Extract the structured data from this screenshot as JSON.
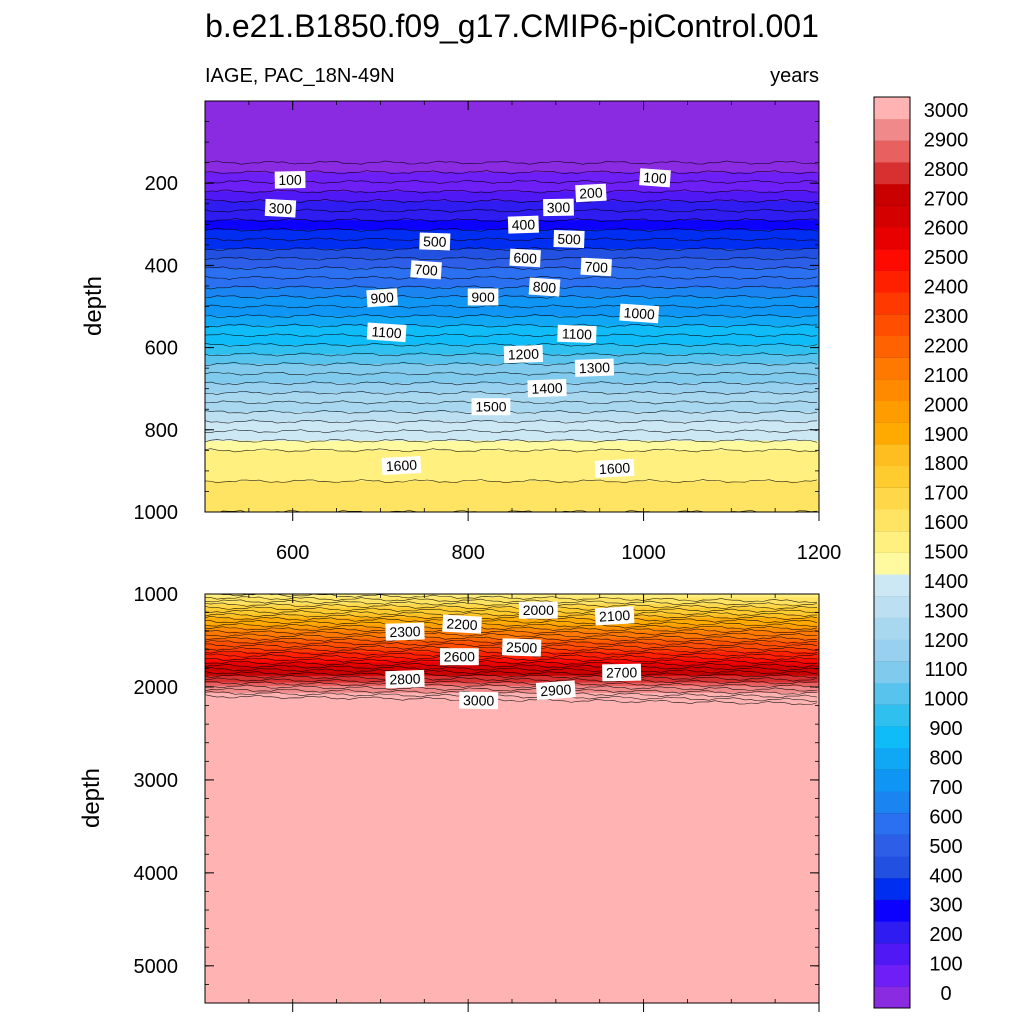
{
  "chart_data": {
    "type": "heatmap",
    "title": "b.e21.B1850.f09_g17.CMIP6-piControl.001",
    "left_string": "IAGE, PAC_18N-49N",
    "right_string": "years",
    "ylabel": "depth",
    "colorbar": {
      "levels": [
        0,
        100,
        200,
        300,
        400,
        500,
        600,
        700,
        800,
        900,
        1000,
        1100,
        1200,
        1300,
        1400,
        1500,
        1600,
        1700,
        1800,
        1900,
        2000,
        2100,
        2200,
        2300,
        2400,
        2500,
        2600,
        2700,
        2800,
        2900,
        3000
      ],
      "tick_labels": [
        "0",
        "100",
        "200",
        "300",
        "400",
        "500",
        "600",
        "700",
        "800",
        "900",
        "1000",
        "1100",
        "1200",
        "1300",
        "1400",
        "1500",
        "1600",
        "1700",
        "1800",
        "1900",
        "2000",
        "2100",
        "2200",
        "2300",
        "2400",
        "2500",
        "2600",
        "2700",
        "2800",
        "2900",
        "3000"
      ],
      "colors": [
        "#8a2be2",
        "#6e1ff5",
        "#5018f5",
        "#2e1cf0",
        "#0c00ff",
        "#002ef0",
        "#2250e0",
        "#2c5ee8",
        "#2a70f0",
        "#1a84f0",
        "#0f96f5",
        "#10a8f5",
        "#0fbcf8",
        "#30c0f0",
        "#58c4ee",
        "#80cbed",
        "#98d0f0",
        "#a8d8f0",
        "#bce0f2",
        "#cde8f5",
        "#fff9a0",
        "#fff080",
        "#ffe464",
        "#ffd84a",
        "#ffcc30",
        "#ffbe20",
        "#ffaa00",
        "#ff9c00",
        "#ff8a00",
        "#ff7800",
        "#ff6200",
        "#ff4e00",
        "#ff3a00",
        "#ff2000",
        "#ff0a00",
        "#e80000",
        "#d40000",
        "#c80000",
        "#d83030",
        "#e86060",
        "#f08a8a",
        "#ffb3b3"
      ]
    },
    "panels": [
      {
        "name": "upper",
        "ylim": [
          1000,
          0
        ],
        "xlim": [
          500,
          1200
        ],
        "x_ticks": [
          600,
          800,
          1000,
          1200
        ],
        "x_tick_labels": [
          "600",
          "800",
          "1000",
          "1200"
        ],
        "y_ticks": [
          200,
          400,
          600,
          800,
          1000
        ],
        "y_tick_labels": [
          "200",
          "400",
          "600",
          "800",
          "1000"
        ],
        "contour_labels": [
          {
            "x": 597,
            "y": 193,
            "text": "100"
          },
          {
            "x": 1013,
            "y": 188,
            "text": "100"
          },
          {
            "x": 940,
            "y": 225,
            "text": "200"
          },
          {
            "x": 586,
            "y": 262,
            "text": "300"
          },
          {
            "x": 903,
            "y": 260,
            "text": "300"
          },
          {
            "x": 863,
            "y": 302,
            "text": "400"
          },
          {
            "x": 762,
            "y": 343,
            "text": "500"
          },
          {
            "x": 915,
            "y": 337,
            "text": "500"
          },
          {
            "x": 865,
            "y": 383,
            "text": "600"
          },
          {
            "x": 752,
            "y": 412,
            "text": "700"
          },
          {
            "x": 946,
            "y": 405,
            "text": "700"
          },
          {
            "x": 887,
            "y": 454,
            "text": "800"
          },
          {
            "x": 702,
            "y": 480,
            "text": "900"
          },
          {
            "x": 817,
            "y": 478,
            "text": "900"
          },
          {
            "x": 995,
            "y": 518,
            "text": "1000"
          },
          {
            "x": 707,
            "y": 564,
            "text": "1100"
          },
          {
            "x": 924,
            "y": 568,
            "text": "1100"
          },
          {
            "x": 863,
            "y": 617,
            "text": "1200"
          },
          {
            "x": 944,
            "y": 650,
            "text": "1300"
          },
          {
            "x": 890,
            "y": 700,
            "text": "1400"
          },
          {
            "x": 826,
            "y": 745,
            "text": "1500"
          },
          {
            "x": 724,
            "y": 888,
            "text": "1600"
          },
          {
            "x": 967,
            "y": 895,
            "text": "1600"
          }
        ]
      },
      {
        "name": "lower",
        "ylim": [
          5400,
          1000
        ],
        "xlim": [
          500,
          1200
        ],
        "y_ticks": [
          1000,
          2000,
          3000,
          4000,
          5000
        ],
        "y_tick_labels": [
          "1000",
          "2000",
          "3000",
          "4000",
          "5000"
        ],
        "contour_labels": [
          {
            "x": 880,
            "y": 1180,
            "text": "2000"
          },
          {
            "x": 967,
            "y": 1240,
            "text": "2100"
          },
          {
            "x": 793,
            "y": 1330,
            "text": "2200"
          },
          {
            "x": 728,
            "y": 1410,
            "text": "2300"
          },
          {
            "x": 861,
            "y": 1580,
            "text": "2500"
          },
          {
            "x": 790,
            "y": 1680,
            "text": "2600"
          },
          {
            "x": 975,
            "y": 1850,
            "text": "2700"
          },
          {
            "x": 728,
            "y": 1920,
            "text": "2800"
          },
          {
            "x": 900,
            "y": 2040,
            "text": "2900"
          },
          {
            "x": 812,
            "y": 2150,
            "text": "3000"
          }
        ]
      }
    ]
  }
}
